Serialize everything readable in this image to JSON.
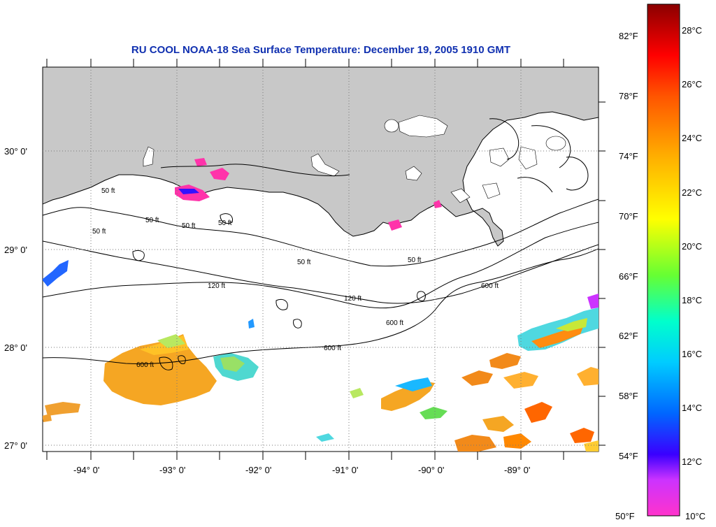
{
  "title": "RU COOL  NOAA-18  Sea Surface Temperature:  December 19, 2005 1910 GMT",
  "map": {
    "lon_labels": [
      "-94° 0'",
      "-93° 0'",
      "-92° 0'",
      "-91° 0'",
      "-90° 0'",
      "-89° 0'"
    ],
    "lat_labels": [
      "30° 0'",
      "29° 0'",
      "28° 0'",
      "27° 0'"
    ],
    "contour_labels": [
      "50 ft",
      "50 ft",
      "50 ft",
      "50 ft",
      "50 ft",
      "50 ft",
      "50 ft",
      "120 ft",
      "120 ft",
      "600 ft",
      "600 ft",
      "600 ft",
      "600 ft"
    ],
    "land_color": "#c8c8c8",
    "ocean_color": "#ffffff"
  },
  "colorbar": {
    "fahrenheit_labels": [
      "82°F",
      "78°F",
      "74°F",
      "70°F",
      "66°F",
      "62°F",
      "58°F",
      "54°F",
      "50°F"
    ],
    "celsius_labels": [
      "28°C",
      "26°C",
      "24°C",
      "22°C",
      "20°C",
      "18°C",
      "16°C",
      "14°C",
      "12°C",
      "10°C"
    ],
    "range_c": [
      10,
      29
    ],
    "colors": [
      "#ff33cc",
      "#cc33ff",
      "#3a00ff",
      "#0080ff",
      "#00e5ff",
      "#33ff99",
      "#a0ff00",
      "#ffff00",
      "#ffb000",
      "#ff6600",
      "#ff0000",
      "#cc0000",
      "#990000"
    ]
  }
}
